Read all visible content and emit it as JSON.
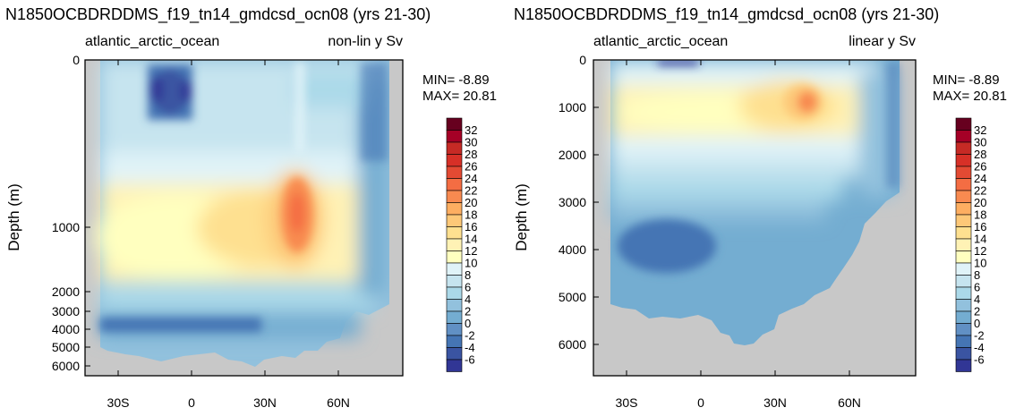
{
  "chart_data": [
    {
      "type": "heatmap",
      "title": "N1850OCBDRDDMS_f19_tn14_gmdcsd_ocn08 (yrs 21-30)",
      "subtitle_left": "atlantic_arctic_ocean",
      "subtitle_right": "non-lin y Sv",
      "ylabel": "Depth (m)",
      "yscale": "non-linear",
      "y_ticks": [
        "0",
        "1000",
        "2000",
        "3000",
        "4000",
        "5000",
        "6000"
      ],
      "x_ticks": [
        "30S",
        "0",
        "30N",
        "60N"
      ],
      "stats": {
        "min": "MIN= -8.89",
        "max": "MAX= 20.81"
      },
      "fields": {
        "values": [
          {
            "lat": -27,
            "depth": 1100,
            "value": 11
          },
          {
            "lat": -5,
            "depth": 1100,
            "value": 14
          },
          {
            "lat": 15,
            "depth": 1050,
            "value": 16
          },
          {
            "lat": 40,
            "depth": 900,
            "value": 20.81
          },
          {
            "lat": -15,
            "depth": 150,
            "value": -8.89
          }
        ]
      }
    },
    {
      "type": "heatmap",
      "title": "N1850OCBDRDDMS_f19_tn14_gmdcsd_ocn08 (yrs 21-30)",
      "subtitle_left": "atlantic_arctic_ocean",
      "subtitle_right": "linear y Sv",
      "ylabel": "Depth (m)",
      "yscale": "linear",
      "y_ticks": [
        "0",
        "1000",
        "2000",
        "3000",
        "4000",
        "5000",
        "6000"
      ],
      "x_ticks": [
        "30S",
        "0",
        "30N",
        "60N"
      ],
      "stats": {
        "min": "MIN= -8.89",
        "max": "MAX= 20.81"
      }
    }
  ],
  "colorbar": {
    "labels": [
      "32",
      "30",
      "28",
      "26",
      "24",
      "22",
      "20",
      "18",
      "16",
      "14",
      "12",
      "10",
      "8",
      "6",
      "4",
      "2",
      "0",
      "-2",
      "-4",
      "-6"
    ],
    "colors": [
      "#67001f",
      "#a50026",
      "#c62a25",
      "#d73027",
      "#e34a33",
      "#f46d43",
      "#f88a50",
      "#fdae61",
      "#fdc878",
      "#fee090",
      "#fff2b5",
      "#ffffbf",
      "#e0f3f8",
      "#c6e4ef",
      "#abd9e9",
      "#92c1dd",
      "#74add1",
      "#6190c4",
      "#4575b4",
      "#3a54a2",
      "#313695"
    ]
  }
}
